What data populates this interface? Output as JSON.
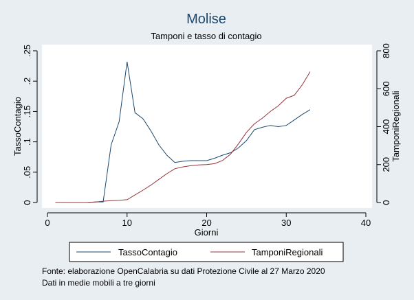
{
  "chart_data": {
    "type": "line",
    "title": "Molise",
    "subtitle": "Tamponi e tasso di contagio",
    "xlabel": "Giorni",
    "ylabel_left": "TassoContagio",
    "ylabel_right": "TamponiRegionali",
    "xlim": [
      0,
      40
    ],
    "xticks": [
      0,
      10,
      20,
      30,
      40
    ],
    "ylim_left": [
      0,
      0.25
    ],
    "yticks_left": [
      0,
      0.05,
      0.1,
      0.15,
      0.2,
      0.25
    ],
    "ytick_labels_left": [
      "0",
      ".05",
      ".1",
      ".15",
      ".2",
      ".25"
    ],
    "ylim_right": [
      0,
      800
    ],
    "yticks_right": [
      0,
      200,
      400,
      600,
      800
    ],
    "ytick_labels_right": [
      "0",
      "200",
      "400",
      "600",
      "800"
    ],
    "grid": false,
    "legend_placement": "bottom",
    "series": [
      {
        "name": "TassoContagio",
        "axis": "left",
        "color": "#1a476f",
        "x": [
          1,
          2,
          3,
          4,
          5,
          6,
          7,
          8,
          9,
          10,
          11,
          12,
          13,
          14,
          15,
          16,
          17,
          18,
          19,
          20,
          21,
          22,
          23,
          24,
          25,
          26,
          27,
          28,
          29,
          30,
          31,
          32,
          33
        ],
        "y": [
          0,
          0,
          0,
          0,
          0,
          0.001,
          0.001,
          0.095,
          0.133,
          0.232,
          0.148,
          0.138,
          0.118,
          0.095,
          0.078,
          0.066,
          0.068,
          0.069,
          0.069,
          0.069,
          0.073,
          0.078,
          0.082,
          0.09,
          0.102,
          0.12,
          0.124,
          0.127,
          0.125,
          0.127,
          0.136,
          0.145,
          0.153
        ]
      },
      {
        "name": "TamponiRegionali",
        "axis": "right",
        "color": "#90353b",
        "x": [
          1,
          2,
          3,
          4,
          5,
          6,
          7,
          8,
          9,
          10,
          11,
          12,
          13,
          14,
          15,
          16,
          17,
          18,
          19,
          20,
          21,
          22,
          23,
          24,
          25,
          26,
          27,
          28,
          29,
          30,
          31,
          32,
          33
        ],
        "y": [
          0,
          0,
          0,
          0,
          0,
          2,
          7,
          10,
          12,
          15,
          40,
          65,
          92,
          122,
          152,
          178,
          188,
          194,
          198,
          200,
          205,
          222,
          255,
          310,
          370,
          415,
          445,
          480,
          510,
          550,
          565,
          620,
          690
        ]
      }
    ],
    "notes": [
      "Fonte: elaborazione OpenCalabria su dati Protezione Civile al 27 Marzo 2020",
      "Dati in medie mobili a tre giorni"
    ]
  }
}
